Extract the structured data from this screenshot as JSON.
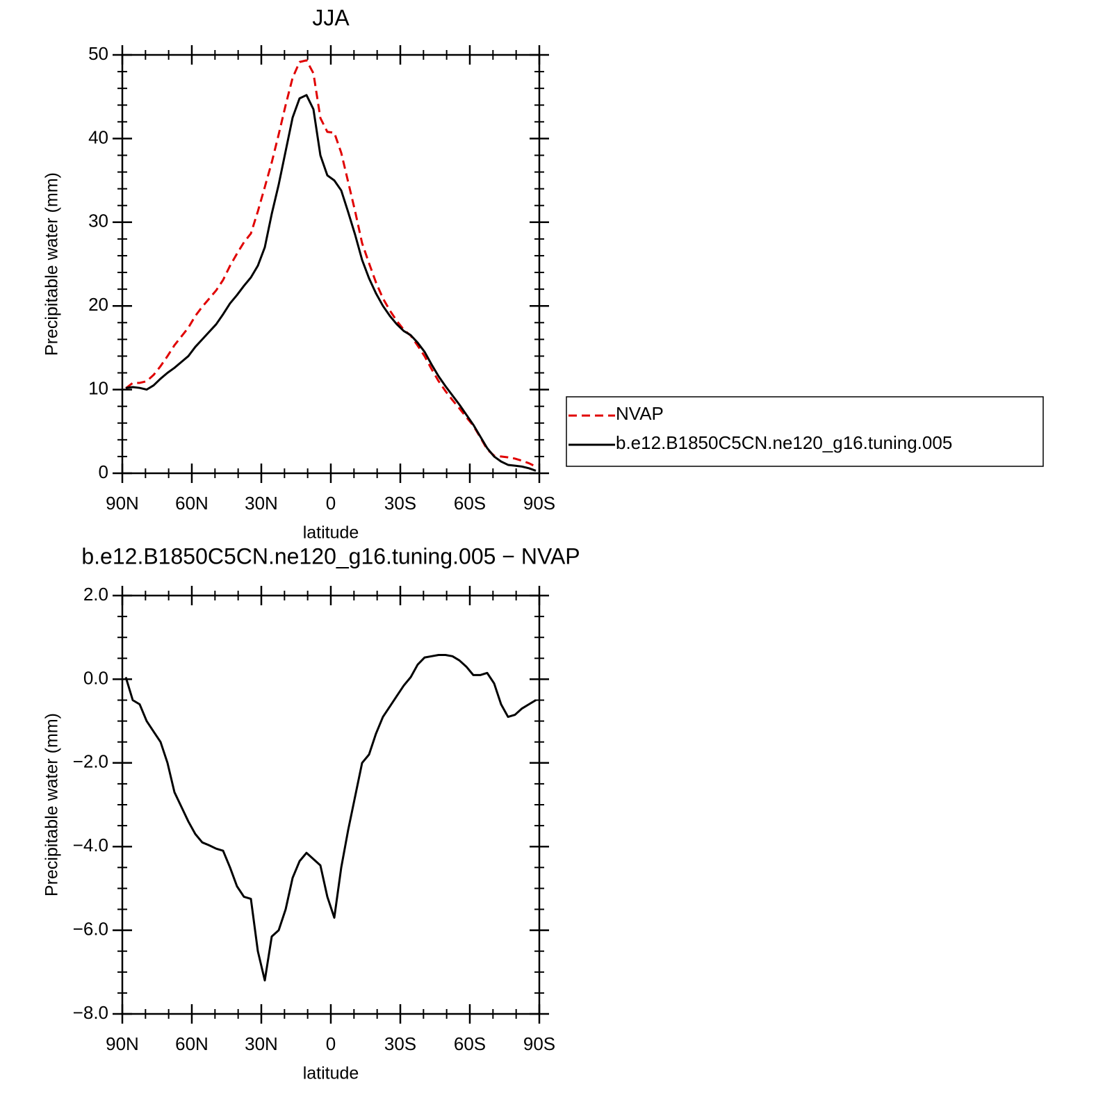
{
  "chart_data": [
    {
      "type": "line",
      "title": "JJA",
      "xlabel": "latitude",
      "ylabel": "Precipitable water (mm)",
      "x": [
        88.5,
        85.5,
        82.5,
        79.5,
        76.5,
        73.5,
        70.5,
        67.5,
        64.5,
        61.5,
        58.5,
        55.5,
        52.5,
        49.5,
        46.5,
        43.5,
        40.5,
        37.5,
        34.5,
        31.5,
        28.5,
        25.5,
        22.5,
        19.5,
        16.5,
        13.5,
        10.5,
        7.5,
        4.5,
        1.5,
        -1.5,
        -4.5,
        -7.5,
        -10.5,
        -13.5,
        -16.5,
        -19.5,
        -22.5,
        -25.5,
        -28.5,
        -31.5,
        -34.5,
        -37.5,
        -40.5,
        -43.5,
        -46.5,
        -49.5,
        -52.5,
        -55.5,
        -58.5,
        -61.5,
        -64.5,
        -67.5,
        -70.5,
        -73.5,
        -76.5,
        -79.5,
        -82.5,
        -85.5,
        -88.5
      ],
      "series": [
        {
          "name": "NVAP",
          "color": "#e00000",
          "style": "dashed",
          "values": [
            10.15,
            10.8,
            10.8,
            11.0,
            11.75,
            12.8,
            14.0,
            15.3,
            16.35,
            17.4,
            18.8,
            19.9,
            20.87,
            21.85,
            23.1,
            24.8,
            26.25,
            27.6,
            28.65,
            31.3,
            34.2,
            37.15,
            40.5,
            44.0,
            47.25,
            49.15,
            49.35,
            47.8,
            42.45,
            40.8,
            40.7,
            38.3,
            34.8,
            31.3,
            27.5,
            25.1,
            22.8,
            20.9,
            19.45,
            18.2,
            17.15,
            16.45,
            15.25,
            13.98,
            12.45,
            11.02,
            9.82,
            8.75,
            7.75,
            6.7,
            5.7,
            4.3,
            2.85,
            2.1,
            2.0,
            1.9,
            1.75,
            1.5,
            1.2,
            0.8
          ]
        },
        {
          "name": "b.e12.B1850C5CN.ne120_g16.tuning.005",
          "color": "#000000",
          "style": "solid",
          "values": [
            10.2,
            10.3,
            10.2,
            10.0,
            10.5,
            11.3,
            12.0,
            12.6,
            13.3,
            14.0,
            15.1,
            16.0,
            16.9,
            17.8,
            19.0,
            20.3,
            21.3,
            22.4,
            23.4,
            24.8,
            27.0,
            31.0,
            34.5,
            38.5,
            42.5,
            44.8,
            45.2,
            43.5,
            38.0,
            35.6,
            35.0,
            33.8,
            31.2,
            28.5,
            25.5,
            23.3,
            21.5,
            20.0,
            18.8,
            17.8,
            17.0,
            16.5,
            15.6,
            14.5,
            13.0,
            11.6,
            10.4,
            9.3,
            8.2,
            7.0,
            5.8,
            4.4,
            3.0,
            2.0,
            1.4,
            1.0,
            0.9,
            0.8,
            0.6,
            0.3
          ]
        }
      ],
      "xlim": [
        90,
        -90
      ],
      "xticks": [
        {
          "value": 90,
          "label": "90N"
        },
        {
          "value": 60,
          "label": "60N"
        },
        {
          "value": 30,
          "label": "30N"
        },
        0,
        {
          "value": -30,
          "label": "30S"
        },
        {
          "value": -60,
          "label": "60S"
        },
        {
          "value": -90,
          "label": "90S"
        }
      ],
      "ylim": [
        0,
        50
      ],
      "yticks": [
        0,
        10,
        20,
        30,
        40,
        50
      ],
      "grid": false,
      "legend": "right"
    },
    {
      "type": "line",
      "title": "b.e12.B1850C5CN.ne120_g16.tuning.005 − NVAP",
      "xlabel": "latitude",
      "ylabel": "Precipitable water (mm)",
      "x": [
        88.5,
        85.5,
        82.5,
        79.5,
        76.5,
        73.5,
        70.5,
        67.5,
        64.5,
        61.5,
        58.5,
        55.5,
        52.5,
        49.5,
        46.5,
        43.5,
        40.5,
        37.5,
        34.5,
        31.5,
        28.5,
        25.5,
        22.5,
        19.5,
        16.5,
        13.5,
        10.5,
        7.5,
        4.5,
        1.5,
        -1.5,
        -4.5,
        -7.5,
        -10.5,
        -13.5,
        -16.5,
        -19.5,
        -22.5,
        -25.5,
        -28.5,
        -31.5,
        -34.5,
        -37.5,
        -40.5,
        -43.5,
        -46.5,
        -49.5,
        -52.5,
        -55.5,
        -58.5,
        -61.5,
        -64.5,
        -67.5,
        -70.5,
        -73.5,
        -76.5,
        -79.5,
        -82.5,
        -85.5,
        -88.5
      ],
      "values": [
        0.05,
        -0.5,
        -0.6,
        -1.0,
        -1.25,
        -1.5,
        -2.0,
        -2.7,
        -3.05,
        -3.4,
        -3.7,
        -3.9,
        -3.97,
        -4.05,
        -4.1,
        -4.5,
        -4.95,
        -5.2,
        -5.25,
        -6.5,
        -7.2,
        -6.15,
        -6.0,
        -5.5,
        -4.75,
        -4.35,
        -4.15,
        -4.3,
        -4.45,
        -5.2,
        -5.7,
        -4.5,
        -3.6,
        -2.8,
        -2.0,
        -1.8,
        -1.3,
        -0.9,
        -0.65,
        -0.4,
        -0.15,
        0.05,
        0.35,
        0.52,
        0.55,
        0.58,
        0.58,
        0.55,
        0.45,
        0.3,
        0.1,
        0.1,
        0.15,
        -0.1,
        -0.6,
        -0.9,
        -0.85,
        -0.7,
        -0.6,
        -0.5
      ],
      "color": "#000000",
      "xlim": [
        90,
        -90
      ],
      "xticks": [
        {
          "value": 90,
          "label": "90N"
        },
        {
          "value": 60,
          "label": "60N"
        },
        {
          "value": 30,
          "label": "30N"
        },
        0,
        {
          "value": -30,
          "label": "30S"
        },
        {
          "value": -60,
          "label": "60S"
        },
        {
          "value": -90,
          "label": "90S"
        }
      ],
      "ylim": [
        -8,
        2
      ],
      "yticks": [
        {
          "value": -8,
          "label": "−8.0"
        },
        {
          "value": -6,
          "label": "−6.0"
        },
        {
          "value": -4,
          "label": "−4.0"
        },
        {
          "value": -2,
          "label": "−2.0"
        },
        {
          "value": 0,
          "label": "0.0"
        },
        {
          "value": 2,
          "label": "2.0"
        }
      ],
      "grid": false
    }
  ]
}
